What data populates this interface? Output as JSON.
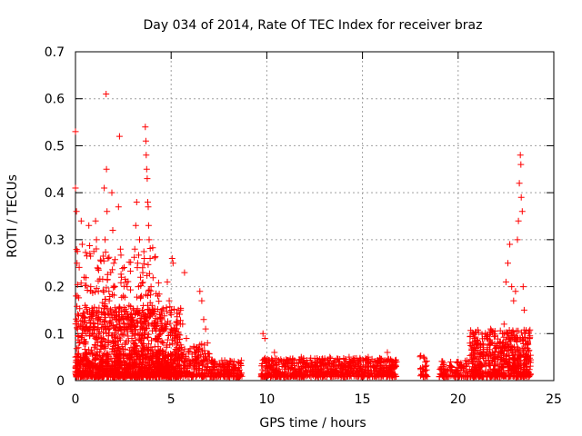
{
  "chart_data": {
    "type": "scatter",
    "title": "Day 034 of 2014, Rate Of TEC Index for receiver braz",
    "xlabel": "GPS time / hours",
    "ylabel": "ROTI / TECUs",
    "xlim": [
      0,
      25
    ],
    "ylim": [
      0,
      0.7
    ],
    "xticks": [
      0,
      5,
      10,
      15,
      20,
      25
    ],
    "yticks": [
      0,
      0.1,
      0.2,
      0.3,
      0.4,
      0.5,
      0.6,
      0.7
    ],
    "xtick_labels": [
      "0",
      "5",
      "10",
      "15",
      "20",
      "25"
    ],
    "ytick_labels": [
      "0",
      "0.1",
      "0.2",
      "0.3",
      "0.4",
      "0.5",
      "0.6",
      "0.7"
    ],
    "grid": true,
    "marker": "+",
    "color": "#ff0000",
    "series": [
      {
        "name": "ROTI",
        "points": [
          [
            0.0,
            0.53
          ],
          [
            0.0,
            0.41
          ],
          [
            0.05,
            0.36
          ],
          [
            0.08,
            0.25
          ],
          [
            0.1,
            0.18
          ],
          [
            0.15,
            0.12
          ],
          [
            0.2,
            0.08
          ],
          [
            0.25,
            0.05
          ],
          [
            0.3,
            0.34
          ],
          [
            0.35,
            0.29
          ],
          [
            0.45,
            0.22
          ],
          [
            0.5,
            0.16
          ],
          [
            0.55,
            0.1
          ],
          [
            0.6,
            0.06
          ],
          [
            0.7,
            0.33
          ],
          [
            0.75,
            0.27
          ],
          [
            0.8,
            0.2
          ],
          [
            0.9,
            0.15
          ],
          [
            0.95,
            0.11
          ],
          [
            1.0,
            0.07
          ],
          [
            1.05,
            0.34
          ],
          [
            1.1,
            0.3
          ],
          [
            1.15,
            0.24
          ],
          [
            1.2,
            0.19
          ],
          [
            1.3,
            0.13
          ],
          [
            1.35,
            0.09
          ],
          [
            1.4,
            0.05
          ],
          [
            1.5,
            0.41
          ],
          [
            1.55,
            0.3
          ],
          [
            1.6,
            0.61
          ],
          [
            1.62,
            0.45
          ],
          [
            1.65,
            0.36
          ],
          [
            1.7,
            0.26
          ],
          [
            1.75,
            0.19
          ],
          [
            1.8,
            0.14
          ],
          [
            1.9,
            0.4
          ],
          [
            1.95,
            0.32
          ],
          [
            2.0,
            0.25
          ],
          [
            2.05,
            0.2
          ],
          [
            2.1,
            0.13
          ],
          [
            2.2,
            0.09
          ],
          [
            2.25,
            0.37
          ],
          [
            2.3,
            0.52
          ],
          [
            2.35,
            0.28
          ],
          [
            2.4,
            0.22
          ],
          [
            2.5,
            0.18
          ],
          [
            2.55,
            0.12
          ],
          [
            2.6,
            0.08
          ],
          [
            2.7,
            0.2
          ],
          [
            2.8,
            0.16
          ],
          [
            2.9,
            0.13
          ],
          [
            3.0,
            0.1
          ],
          [
            3.05,
            0.07
          ],
          [
            3.1,
            0.28
          ],
          [
            3.15,
            0.33
          ],
          [
            3.2,
            0.38
          ],
          [
            3.25,
            0.25
          ],
          [
            3.3,
            0.2
          ],
          [
            3.35,
            0.3
          ],
          [
            3.4,
            0.22
          ],
          [
            3.45,
            0.18
          ],
          [
            3.5,
            0.15
          ],
          [
            3.55,
            0.12
          ],
          [
            3.6,
            0.26
          ],
          [
            3.65,
            0.54
          ],
          [
            3.68,
            0.51
          ],
          [
            3.7,
            0.48
          ],
          [
            3.72,
            0.45
          ],
          [
            3.75,
            0.43
          ],
          [
            3.78,
            0.38
          ],
          [
            3.8,
            0.37
          ],
          [
            3.82,
            0.33
          ],
          [
            3.85,
            0.3
          ],
          [
            3.9,
            0.26
          ],
          [
            3.95,
            0.2
          ],
          [
            4.0,
            0.16
          ],
          [
            4.1,
            0.12
          ],
          [
            4.2,
            0.09
          ],
          [
            4.3,
            0.18
          ],
          [
            4.4,
            0.14
          ],
          [
            4.5,
            0.11
          ],
          [
            4.6,
            0.08
          ],
          [
            4.7,
            0.06
          ],
          [
            4.8,
            0.21
          ],
          [
            4.9,
            0.17
          ],
          [
            5.0,
            0.14
          ],
          [
            5.05,
            0.26
          ],
          [
            5.1,
            0.25
          ],
          [
            5.2,
            0.1
          ],
          [
            5.3,
            0.07
          ],
          [
            5.4,
            0.05
          ],
          [
            5.5,
            0.15
          ],
          [
            5.6,
            0.12
          ],
          [
            5.7,
            0.23
          ],
          [
            5.8,
            0.09
          ],
          [
            5.9,
            0.06
          ],
          [
            6.0,
            0.04
          ],
          [
            6.2,
            0.07
          ],
          [
            6.4,
            0.05
          ],
          [
            6.5,
            0.19
          ],
          [
            6.6,
            0.17
          ],
          [
            6.7,
            0.13
          ],
          [
            6.8,
            0.11
          ],
          [
            6.9,
            0.08
          ],
          [
            7.0,
            0.05
          ],
          [
            7.2,
            0.03
          ],
          [
            7.5,
            0.03
          ],
          [
            7.8,
            0.02
          ],
          [
            8.0,
            0.03
          ],
          [
            8.3,
            0.02
          ],
          [
            8.5,
            0.02
          ],
          [
            9.8,
            0.1
          ],
          [
            9.9,
            0.09
          ],
          [
            10.1,
            0.04
          ],
          [
            10.4,
            0.06
          ],
          [
            10.8,
            0.03
          ],
          [
            11.3,
            0.04
          ],
          [
            11.8,
            0.05
          ],
          [
            12.3,
            0.03
          ],
          [
            12.8,
            0.04
          ],
          [
            13.3,
            0.05
          ],
          [
            13.8,
            0.04
          ],
          [
            14.3,
            0.05
          ],
          [
            14.8,
            0.04
          ],
          [
            15.3,
            0.05
          ],
          [
            15.8,
            0.04
          ],
          [
            16.3,
            0.06
          ],
          [
            16.6,
            0.04
          ],
          [
            18.2,
            0.05
          ],
          [
            18.3,
            0.03
          ],
          [
            19.2,
            0.03
          ],
          [
            19.6,
            0.02
          ],
          [
            20.0,
            0.04
          ],
          [
            20.4,
            0.03
          ],
          [
            20.8,
            0.05
          ],
          [
            21.0,
            0.08
          ],
          [
            21.3,
            0.06
          ],
          [
            21.5,
            0.09
          ],
          [
            21.7,
            0.11
          ],
          [
            21.9,
            0.1
          ],
          [
            22.0,
            0.07
          ],
          [
            22.2,
            0.08
          ],
          [
            22.4,
            0.12
          ],
          [
            22.5,
            0.21
          ],
          [
            22.6,
            0.25
          ],
          [
            22.7,
            0.29
          ],
          [
            22.8,
            0.2
          ],
          [
            22.9,
            0.17
          ],
          [
            23.0,
            0.19
          ],
          [
            23.1,
            0.3
          ],
          [
            23.15,
            0.34
          ],
          [
            23.2,
            0.42
          ],
          [
            23.25,
            0.48
          ],
          [
            23.28,
            0.46
          ],
          [
            23.3,
            0.39
          ],
          [
            23.35,
            0.36
          ],
          [
            23.4,
            0.2
          ],
          [
            23.45,
            0.15
          ],
          [
            23.5,
            0.1
          ],
          [
            23.6,
            0.05
          ],
          [
            23.7,
            0.04
          ]
        ]
      }
    ],
    "density_bands": [
      {
        "from": 0.0,
        "to": 5.5,
        "y_low": 0.0,
        "y_high": 0.15,
        "count": 900
      },
      {
        "from": 0.0,
        "to": 5.5,
        "y_low": 0.0,
        "y_high": 0.05,
        "count": 500
      },
      {
        "from": 0.0,
        "to": 4.5,
        "y_low": 0.1,
        "y_high": 0.28,
        "count": 220
      },
      {
        "from": 5.5,
        "to": 7.0,
        "y_low": 0.0,
        "y_high": 0.07,
        "count": 160
      },
      {
        "from": 7.0,
        "to": 8.7,
        "y_low": 0.0,
        "y_high": 0.035,
        "count": 160
      },
      {
        "from": 9.7,
        "to": 16.8,
        "y_low": 0.0,
        "y_high": 0.04,
        "count": 750
      },
      {
        "from": 18.0,
        "to": 18.4,
        "y_low": 0.0,
        "y_high": 0.045,
        "count": 25
      },
      {
        "from": 19.0,
        "to": 20.6,
        "y_low": 0.0,
        "y_high": 0.035,
        "count": 110
      },
      {
        "from": 20.6,
        "to": 23.8,
        "y_low": 0.0,
        "y_high": 0.1,
        "count": 600
      }
    ]
  }
}
